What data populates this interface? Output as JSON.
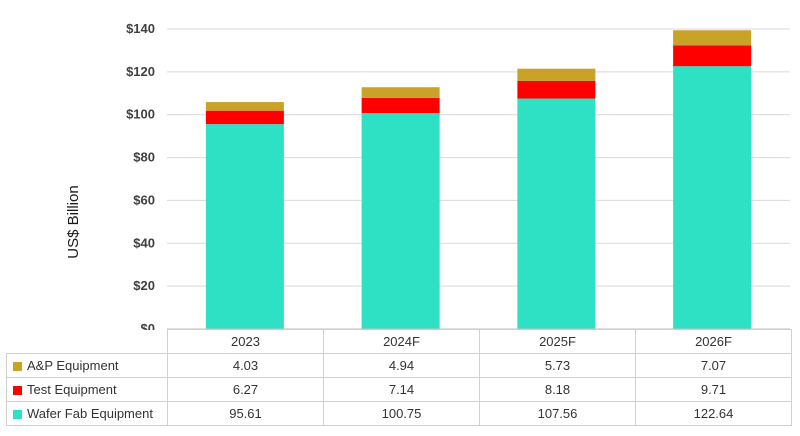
{
  "chart_data": {
    "type": "bar",
    "stacked": true,
    "categories": [
      "2023",
      "2024F",
      "2025F",
      "2026F"
    ],
    "series": [
      {
        "name": "Wafer Fab Equipment",
        "values": [
          95.61,
          100.75,
          107.56,
          122.64
        ],
        "color": "#2EE0C4",
        "value_labels": [
          "95.61",
          "100.75",
          "107.56",
          "122.64"
        ]
      },
      {
        "name": "Test Equipment",
        "values": [
          6.27,
          7.14,
          8.18,
          9.71
        ],
        "color": "#FF0000",
        "value_labels": [
          "6.27",
          "7.14",
          "8.18",
          "9.71"
        ]
      },
      {
        "name": "A&P Equipment",
        "values": [
          4.03,
          4.94,
          5.73,
          7.07
        ],
        "color": "#C9A227",
        "value_labels": [
          "4.03",
          "4.94",
          "5.73",
          "7.07"
        ]
      }
    ],
    "ylabel": "US$ Billion",
    "ylim": [
      0,
      140
    ],
    "yticks": [
      "$0",
      "$20",
      "$40",
      "$60",
      "$80",
      "$100",
      "$120",
      "$140"
    ],
    "ytick_values": [
      0,
      20,
      40,
      60,
      80,
      100,
      120,
      140
    ],
    "grid": true,
    "legend": "data table below chart"
  }
}
